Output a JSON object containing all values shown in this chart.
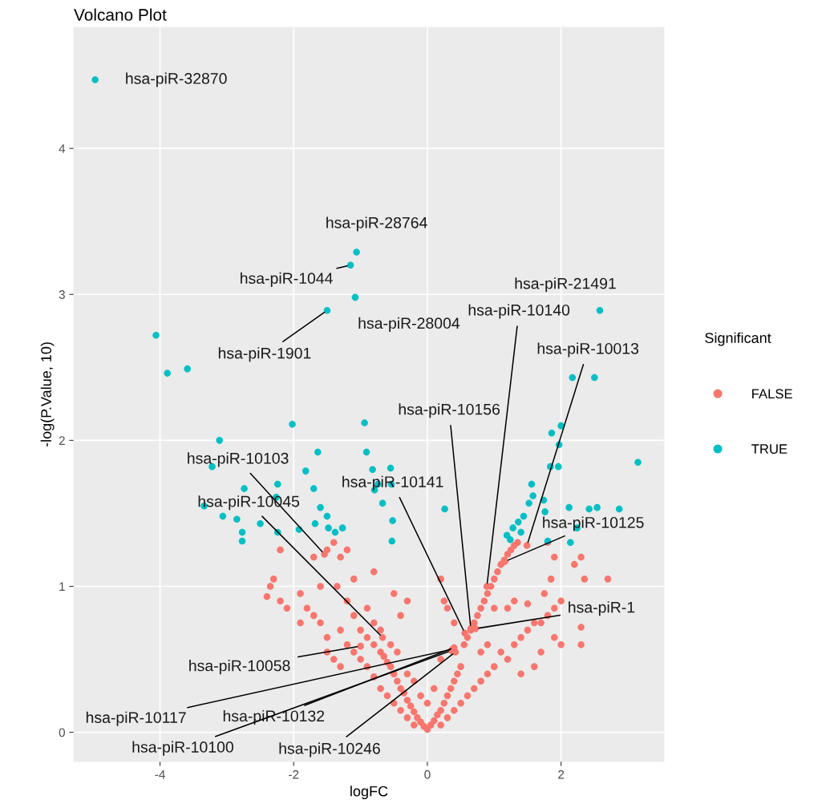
{
  "chart_data": {
    "type": "scatter",
    "title": "Volcano Plot",
    "xlabel": "logFC",
    "ylabel": "-log(P.Value, 10)",
    "legend_title": "Significant",
    "xlim": [
      -5.29,
      3.54
    ],
    "ylim": [
      -0.2,
      4.83
    ],
    "xticks": [
      -4,
      -2,
      0,
      2
    ],
    "yticks": [
      0,
      1,
      2,
      3,
      4
    ],
    "grid": true,
    "legend": "right",
    "marker": "circle",
    "series": [
      {
        "name": "FALSE",
        "color": "#f8766d",
        "x": [
          0,
          0.05,
          -0.05,
          0.1,
          -0.1,
          0.15,
          -0.15,
          0.2,
          -0.2,
          0.25,
          -0.25,
          0.3,
          -0.3,
          0.35,
          -0.35,
          0.4,
          -0.4,
          0.45,
          -0.45,
          0.5,
          -0.5,
          -0.55,
          -0.6,
          -0.65,
          -0.7,
          -0.8,
          -0.9,
          -1.0,
          -0.2,
          0.2,
          -0.3,
          0.3,
          0.4,
          -0.4,
          0.5,
          -0.5,
          0.6,
          -0.6,
          0.7,
          -0.7,
          0.8,
          -0.8,
          0.9,
          1.0,
          -0.9,
          -1.0,
          -1.1,
          -1.2,
          1.1,
          1.2,
          1.3,
          1.4,
          1.5,
          1.7,
          1.8,
          1.9,
          1.6,
          1.4,
          1.7,
          2.0,
          0.55,
          0.6,
          0.65,
          0.7,
          0.75,
          0.8,
          0.85,
          0.9,
          0.95,
          1.0,
          1.05,
          1.1,
          1.15,
          1.2,
          1.25,
          1.3,
          1.35,
          0.2,
          0.3,
          0.25,
          0.4,
          0.2,
          1.8,
          1.9,
          2.2,
          2.3,
          2.7,
          2.35,
          1.85,
          1.75,
          1.9,
          2.0,
          2.3,
          2.3,
          1.2,
          1.0,
          1.3,
          1.5,
          1.6,
          0.8,
          0.9,
          -2.4,
          -2.35,
          -2.3,
          -2.2,
          -2.1,
          -2.2,
          -1.9,
          -1.8,
          -1.9,
          -1.7,
          -1.6,
          -1.5,
          -1.5,
          -1.4,
          -1.3,
          -1.7,
          -1.5,
          -1.4,
          -1.3,
          -1.2,
          -1.6,
          -1.35,
          -1.2,
          -1.1,
          -0.9,
          -0.8,
          -0.7,
          -1.3,
          -1.1,
          -0.8,
          -0.5,
          -0.4,
          -0.3,
          -0.55,
          -0.45,
          -0.3,
          -0.2,
          -0.1,
          0.0,
          0.1,
          -1.54,
          -0.67,
          -1.0,
          0.89,
          1.49,
          0.65,
          0.56,
          1.16,
          0.72,
          0.38,
          0.4,
          0.36,
          0.42
        ],
        "values": [
          0.02,
          0.05,
          0.04,
          0.08,
          0.07,
          0.12,
          0.1,
          0.15,
          0.14,
          0.2,
          0.18,
          0.25,
          0.22,
          0.3,
          0.27,
          0.35,
          0.3,
          0.4,
          0.35,
          0.45,
          0.4,
          0.45,
          0.48,
          0.52,
          0.55,
          0.6,
          0.65,
          0.7,
          0.05,
          0.05,
          0.1,
          0.1,
          0.15,
          0.15,
          0.2,
          0.2,
          0.25,
          0.25,
          0.3,
          0.3,
          0.35,
          0.38,
          0.4,
          0.45,
          0.45,
          0.5,
          0.55,
          0.6,
          0.55,
          0.5,
          0.6,
          0.65,
          0.7,
          0.75,
          0.8,
          0.85,
          0.45,
          0.4,
          0.55,
          0.9,
          0.6,
          0.65,
          0.7,
          0.75,
          0.8,
          0.85,
          0.9,
          0.95,
          1.0,
          1.05,
          1.1,
          1.15,
          1.18,
          1.22,
          1.25,
          1.28,
          1.3,
          1.05,
          0.85,
          0.9,
          0.75,
          0.5,
          1.3,
          1.2,
          1.15,
          1.2,
          1.05,
          1.05,
          1.05,
          0.95,
          0.65,
          0.6,
          0.72,
          0.6,
          0.85,
          0.85,
          0.9,
          0.88,
          0.75,
          0.55,
          0.6,
          0.93,
          1.0,
          1.05,
          0.9,
          0.85,
          1.25,
          0.95,
          0.85,
          0.75,
          0.8,
          0.75,
          0.65,
          0.55,
          0.5,
          0.45,
          1.2,
          1.25,
          1.3,
          1.2,
          1.25,
          1.0,
          1.0,
          0.9,
          0.8,
          0.85,
          0.75,
          0.7,
          0.7,
          1.05,
          1.1,
          0.95,
          0.8,
          0.9,
          0.6,
          0.55,
          0.4,
          0.35,
          0.25,
          0.2,
          0.3,
          1.22,
          0.65,
          0.59,
          1.0,
          1.28,
          0.71,
          0.68,
          1.17,
          0.71,
          0.57,
          0.58,
          0.56,
          0.55
        ]
      },
      {
        "name": "TRUE",
        "color": "#00bfc4",
        "x": [
          -4.97,
          -4.06,
          -3.89,
          -3.59,
          -2.02,
          -3.11,
          -3.22,
          -2.74,
          -2.24,
          -1.64,
          -1.82,
          -3.34,
          -3.06,
          -2.85,
          -2.77,
          -2.77,
          -2.5,
          -2.24,
          -2.26,
          -1.7,
          -1.92,
          -1.68,
          -1.5,
          -1.48,
          -1.38,
          -1.27,
          -1.6,
          -1.15,
          -1.06,
          -1.08,
          -1.5,
          -0.94,
          -0.91,
          -0.82,
          -0.74,
          -0.79,
          -0.55,
          -0.54,
          -0.67,
          -0.52,
          -0.53,
          0.26,
          2.58,
          2.17,
          2.5,
          2.0,
          1.86,
          1.97,
          1.84,
          1.96,
          3.15,
          1.56,
          1.58,
          1.52,
          1.74,
          1.76,
          1.44,
          1.36,
          1.28,
          1.19,
          1.24,
          2.12,
          2.42,
          2.54,
          2.87,
          2.24,
          2.14,
          1.8,
          1.4
        ],
        "values": [
          4.47,
          2.72,
          2.46,
          2.49,
          2.11,
          2.0,
          1.82,
          1.67,
          1.7,
          1.92,
          1.79,
          1.55,
          1.48,
          1.46,
          1.37,
          1.31,
          1.43,
          1.37,
          1.61,
          1.67,
          1.39,
          1.43,
          1.48,
          1.4,
          1.37,
          1.4,
          1.54,
          3.2,
          3.29,
          2.98,
          2.89,
          2.12,
          1.92,
          1.8,
          1.7,
          1.66,
          1.81,
          1.7,
          1.57,
          1.45,
          1.31,
          1.53,
          2.89,
          2.43,
          2.43,
          2.1,
          2.05,
          1.97,
          1.82,
          1.82,
          1.85,
          1.7,
          1.62,
          1.57,
          1.59,
          1.51,
          1.48,
          1.44,
          1.4,
          1.35,
          1.32,
          1.54,
          1.53,
          1.54,
          1.53,
          1.4,
          1.3,
          1.31,
          1.37
        ]
      }
    ],
    "annotations": [
      {
        "text": "hsa-piR-32870",
        "x": -4.97,
        "y": 4.47
      },
      {
        "text": "hsa-piR-28764",
        "x": -1.06,
        "y": 3.29
      },
      {
        "text": "hsa-piR-1044",
        "x": -1.15,
        "y": 3.2
      },
      {
        "text": "hsa-piR-1901",
        "x": -1.5,
        "y": 2.89
      },
      {
        "text": "hsa-piR-28004",
        "x": -1.08,
        "y": 2.98
      },
      {
        "text": "hsa-piR-21491",
        "x": 2.58,
        "y": 2.89
      },
      {
        "text": "hsa-piR-10140",
        "x": 0.89,
        "y": 1.0
      },
      {
        "text": "hsa-piR-10013",
        "x": 1.49,
        "y": 1.28
      },
      {
        "text": "hsa-piR-10156",
        "x": 0.65,
        "y": 0.71
      },
      {
        "text": "hsa-piR-10141",
        "x": 0.56,
        "y": 0.68
      },
      {
        "text": "hsa-piR-10125",
        "x": 1.16,
        "y": 1.17
      },
      {
        "text": "hsa-piR-1",
        "x": 0.72,
        "y": 0.71
      },
      {
        "text": "hsa-piR-10103",
        "x": -1.54,
        "y": 1.22
      },
      {
        "text": "hsa-piR-10045",
        "x": -0.67,
        "y": 0.65
      },
      {
        "text": "hsa-piR-10058",
        "x": -1.0,
        "y": 0.59
      },
      {
        "text": "hsa-piR-10117",
        "x": 0.38,
        "y": 0.57
      },
      {
        "text": "hsa-piR-10132",
        "x": 0.4,
        "y": 0.58
      },
      {
        "text": "hsa-piR-10100",
        "x": 0.36,
        "y": 0.56
      },
      {
        "text": "hsa-piR-10246",
        "x": 0.42,
        "y": 0.55
      }
    ]
  }
}
